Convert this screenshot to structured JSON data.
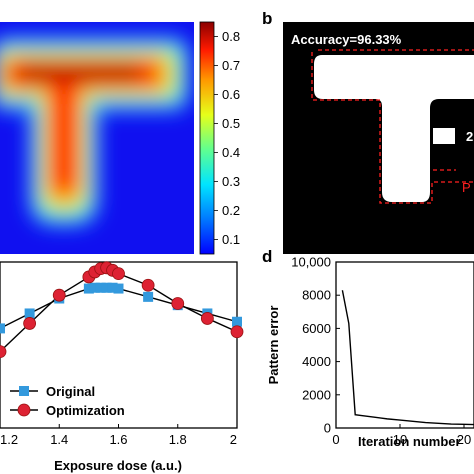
{
  "panels": {
    "b_label": "b",
    "d_label": "d",
    "accuracy_text": "Accuracy=96.33%",
    "partial_label_1": "2",
    "partial_label_2": "P"
  },
  "chart_data": [
    {
      "id": "a",
      "type": "heatmap",
      "title": "",
      "description": "T-shaped intensity map",
      "colorbar": {
        "ticks": [
          "0.8",
          "0.7",
          "0.6",
          "0.5",
          "0.4",
          "0.3",
          "0.2",
          "0.1"
        ],
        "range": [
          0.05,
          0.85
        ],
        "colors": [
          "#0000ff",
          "#00a0ff",
          "#00ffff",
          "#80ff80",
          "#ffff00",
          "#ff8000",
          "#ff0000",
          "#8b0000"
        ]
      }
    },
    {
      "id": "c",
      "type": "line",
      "xlabel": "Exposure dose (a.u.)",
      "ylabel": "",
      "xlim": [
        1.2,
        2.0
      ],
      "ylim": [
        0.0,
        1.0
      ],
      "x_ticks": [
        "1.2",
        "1.4",
        "1.6",
        "1.8",
        "2"
      ],
      "legend_position": "bottom-left",
      "series": [
        {
          "name": "Original",
          "color": "#3399dd",
          "marker": "square",
          "x": [
            1.2,
            1.3,
            1.4,
            1.5,
            1.52,
            1.54,
            1.56,
            1.58,
            1.6,
            1.7,
            1.8,
            1.9,
            2.0
          ],
          "y": [
            0.6,
            0.69,
            0.78,
            0.84,
            0.845,
            0.845,
            0.845,
            0.845,
            0.84,
            0.79,
            0.74,
            0.69,
            0.64
          ]
        },
        {
          "name": "Optimization",
          "color": "#dd2233",
          "marker": "circle",
          "x": [
            1.2,
            1.3,
            1.4,
            1.5,
            1.52,
            1.54,
            1.56,
            1.58,
            1.6,
            1.7,
            1.8,
            1.9,
            2.0
          ],
          "y": [
            0.46,
            0.63,
            0.8,
            0.91,
            0.94,
            0.96,
            0.965,
            0.95,
            0.93,
            0.86,
            0.75,
            0.66,
            0.58
          ]
        }
      ]
    },
    {
      "id": "d",
      "type": "line",
      "xlabel": "Iteration number",
      "ylabel": "Pattern error",
      "ylim": [
        0,
        10000
      ],
      "y_ticks": [
        "10,000",
        "8000",
        "6000",
        "4000",
        "2000",
        "0"
      ],
      "x_ticks": [
        "0",
        "10",
        "20"
      ],
      "series": [
        {
          "name": "",
          "color": "#000000",
          "x": [
            1,
            2,
            3,
            4,
            6,
            8,
            10,
            12,
            14,
            16,
            18,
            20,
            22
          ],
          "y": [
            8300,
            6300,
            800,
            750,
            650,
            550,
            480,
            400,
            330,
            280,
            240,
            220,
            200
          ]
        }
      ]
    }
  ]
}
